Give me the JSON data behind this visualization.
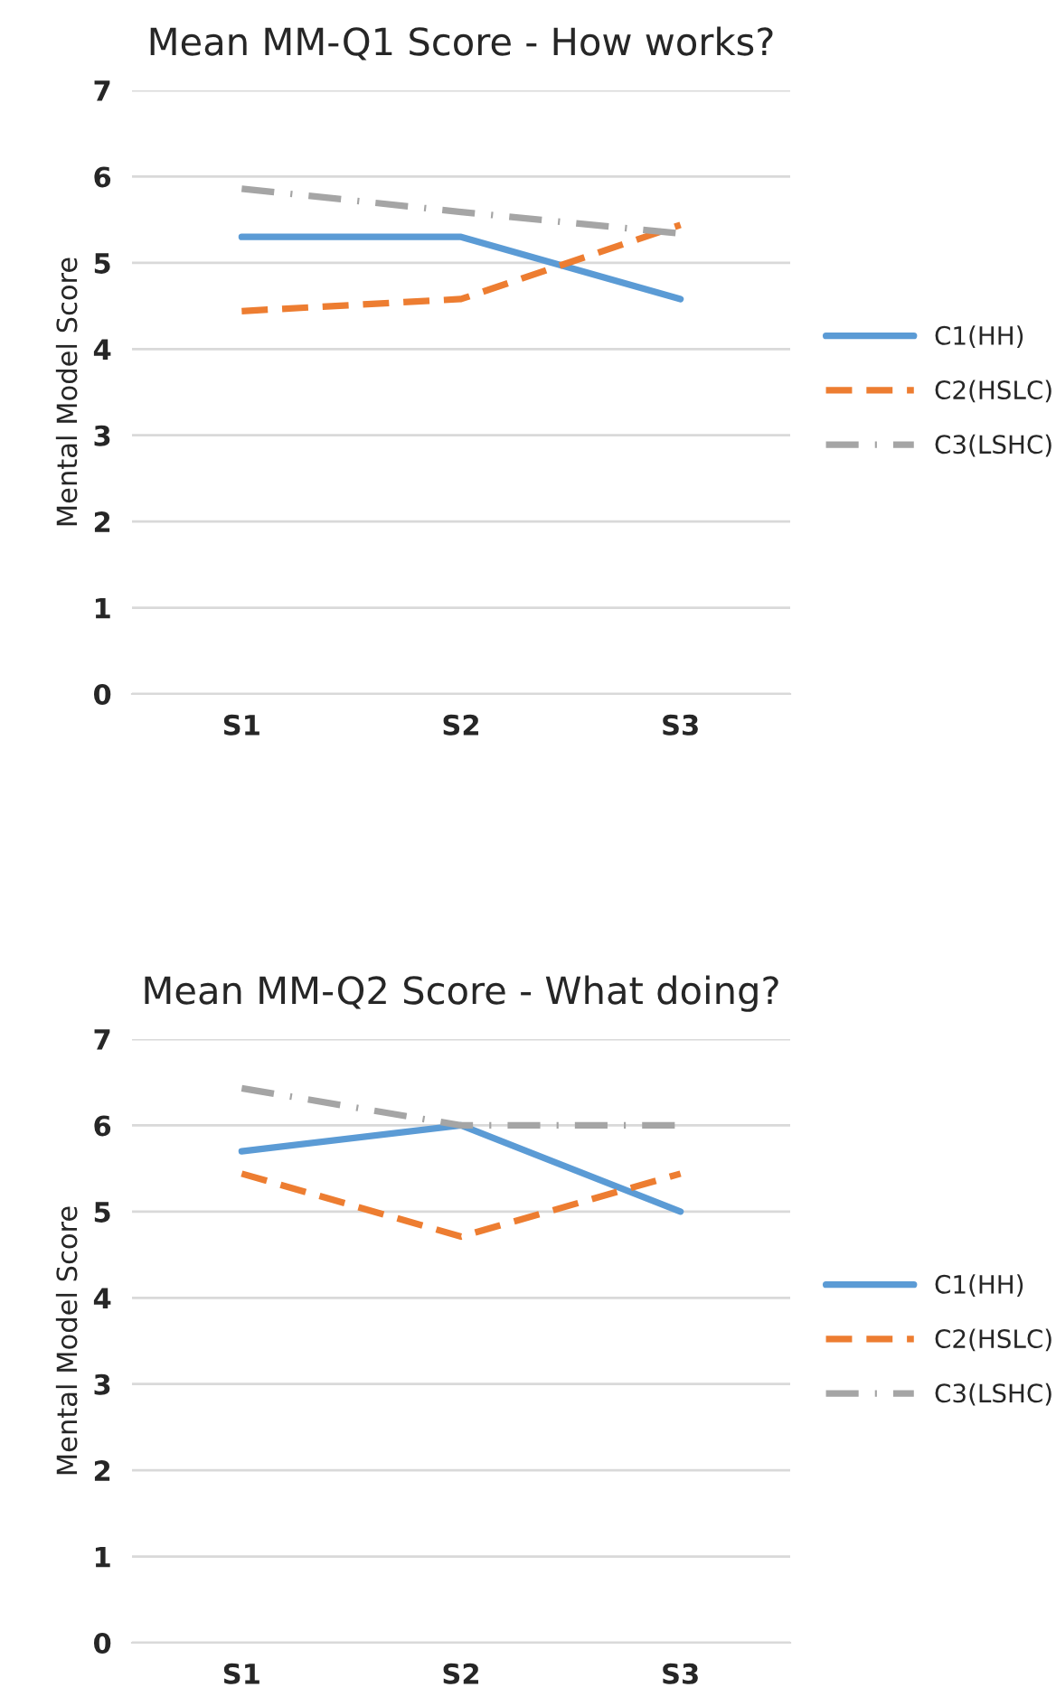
{
  "chart_data": [
    {
      "type": "line",
      "title": "Mean MM-Q1 Score - How works?",
      "ylabel": "Mental Model Score",
      "categories": [
        "S1",
        "S2",
        "S3"
      ],
      "ylim": [
        0,
        7
      ],
      "yticks": [
        0,
        1,
        2,
        3,
        4,
        5,
        6,
        7
      ],
      "grid": "y",
      "legend": "right",
      "series": [
        {
          "name": "C1(HH)",
          "color": "#5b9bd5",
          "line_style": "solid",
          "values": [
            5.3,
            5.3,
            4.58
          ]
        },
        {
          "name": "C2(HSLC)",
          "color": "#ed7d31",
          "line_style": "dashed",
          "values": [
            4.44,
            4.58,
            5.44
          ]
        },
        {
          "name": "C3(LSHC)",
          "color": "#a5a5a5",
          "line_style": "dashdot",
          "values": [
            5.86,
            5.59,
            5.34
          ]
        }
      ]
    },
    {
      "type": "line",
      "title": "Mean MM-Q2 Score - What doing?",
      "ylabel": "Mental Model Score",
      "categories": [
        "S1",
        "S2",
        "S3"
      ],
      "ylim": [
        0,
        7
      ],
      "yticks": [
        0,
        1,
        2,
        3,
        4,
        5,
        6,
        7
      ],
      "grid": "y",
      "legend": "right",
      "series": [
        {
          "name": "C1(HH)",
          "color": "#5b9bd5",
          "line_style": "solid",
          "values": [
            5.7,
            6.0,
            5.0
          ]
        },
        {
          "name": "C2(HSLC)",
          "color": "#ed7d31",
          "line_style": "dashed",
          "values": [
            5.44,
            4.71,
            5.44
          ]
        },
        {
          "name": "C3(LSHC)",
          "color": "#a5a5a5",
          "line_style": "dashdot",
          "values": [
            6.43,
            6.0,
            6.0
          ]
        }
      ]
    }
  ]
}
